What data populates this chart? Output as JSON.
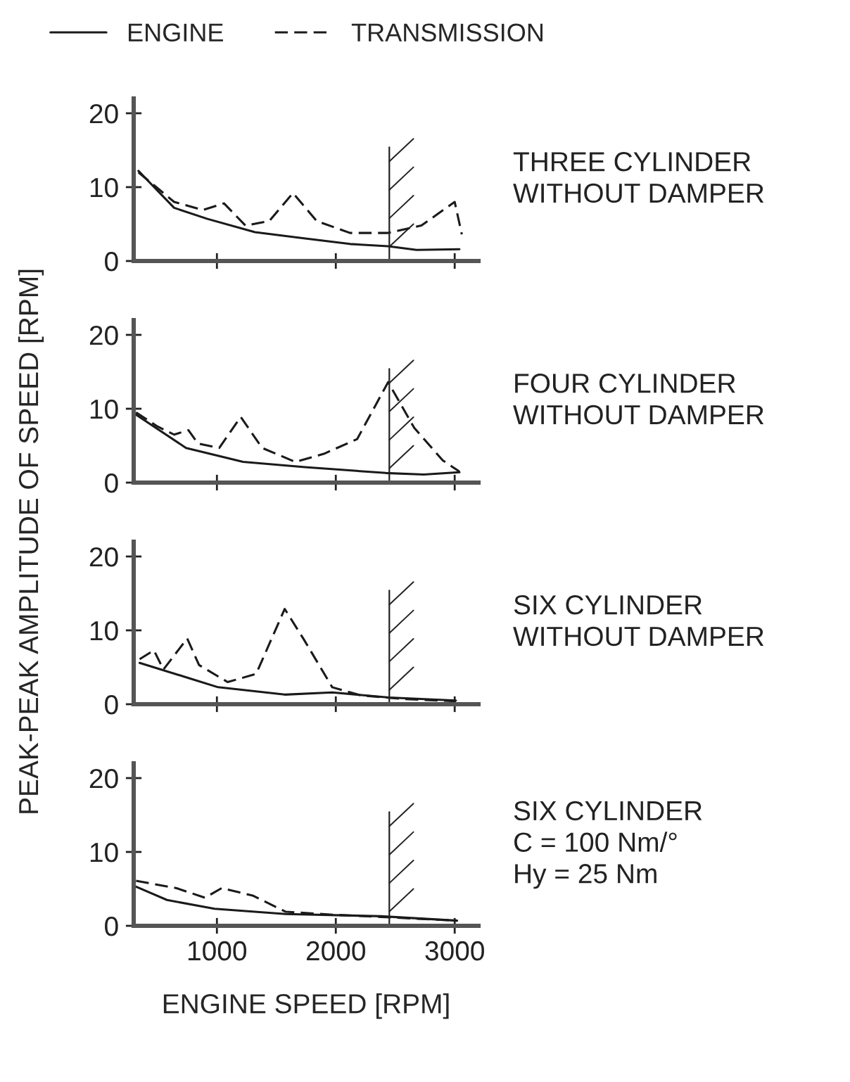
{
  "chart_data": [
    {
      "type": "line",
      "ylabel": "PEAK-PEAK AMPLITUDE OF SPEED [RPM]",
      "annotations": [
        "THREE CYLINDER\nWITHOUT DAMPER"
      ],
      "legend": "top",
      "tick_labels": "y",
      "grid": false,
      "xlim": [
        300,
        3200
      ],
      "xticks": [
        {
          "value": 1000,
          "label": null
        },
        {
          "value": 2000,
          "label": null
        },
        {
          "value": 3000,
          "label": null
        }
      ],
      "ylim": [
        0,
        22
      ],
      "yticks": [
        0,
        10,
        20
      ],
      "ref_lines": [
        {
          "axis": "x",
          "value": 2450,
          "label": null
        }
      ],
      "series": [
        {
          "name": "ENGINE",
          "color": "#1a1a1a",
          "line_style": "solid",
          "x": [
            340,
            640,
            920,
            1320,
            1720,
            2120,
            2440,
            2680,
            3040
          ],
          "values": [
            12.2,
            7.2,
            5.7,
            3.9,
            3.1,
            2.3,
            2.0,
            1.5,
            1.6
          ]
        },
        {
          "name": "TRANSMISSION",
          "color": "#1a1a1a",
          "line_style": "dashed",
          "x": [
            340,
            640,
            880,
            1060,
            1240,
            1440,
            1640,
            1840,
            2120,
            2440,
            2720,
            3000,
            3060
          ],
          "values": [
            12,
            8,
            6.9,
            7.8,
            4.8,
            5.4,
            9.2,
            5.4,
            3.8,
            3.8,
            4.8,
            8,
            3.6
          ]
        }
      ]
    },
    {
      "type": "line",
      "annotations": [
        "FOUR CYLINDER\nWITHOUT DAMPER"
      ],
      "tick_labels": "y",
      "grid": false,
      "xlim": [
        300,
        3200
      ],
      "xticks": [
        {
          "value": 1000,
          "label": null
        },
        {
          "value": 2000,
          "label": null
        },
        {
          "value": 3000,
          "label": null
        }
      ],
      "ylim": [
        0,
        22
      ],
      "yticks": [
        0,
        10,
        20
      ],
      "ref_lines": [
        {
          "axis": "x",
          "value": 2450,
          "label": null
        }
      ],
      "series": [
        {
          "color": "#1a1a1a",
          "line_style": "solid",
          "x": [
            320,
            740,
            1220,
            1740,
            2420,
            2740,
            3040
          ],
          "values": [
            9.2,
            4.7,
            2.8,
            2.1,
            1.3,
            1.1,
            1.4
          ]
        },
        {
          "color": "#1a1a1a",
          "line_style": "dashed",
          "x": [
            320,
            500,
            640,
            760,
            840,
            1020,
            1200,
            1380,
            1660,
            1900,
            2180,
            2440,
            2660,
            2900,
            3040
          ],
          "values": [
            9.5,
            7.6,
            6.5,
            7.1,
            5.3,
            4.7,
            8.9,
            4.7,
            2.8,
            3.9,
            5.9,
            13.6,
            7.4,
            3.0,
            1.5
          ]
        }
      ]
    },
    {
      "type": "line",
      "annotations": [
        "SIX CYLINDER\nWITHOUT DAMPER"
      ],
      "tick_labels": "y",
      "grid": false,
      "xlim": [
        300,
        3200
      ],
      "xticks": [
        {
          "value": 1000,
          "label": null
        },
        {
          "value": 2000,
          "label": null
        },
        {
          "value": 3000,
          "label": null
        }
      ],
      "ylim": [
        0,
        22
      ],
      "yticks": [
        0,
        10,
        20
      ],
      "ref_lines": [
        {
          "axis": "x",
          "value": 2450,
          "label": null
        }
      ],
      "series": [
        {
          "color": "#1a1a1a",
          "line_style": "solid",
          "x": [
            350,
            770,
            1010,
            1570,
            1970,
            2450,
            3010
          ],
          "values": [
            5.6,
            3.5,
            2.3,
            1.3,
            1.6,
            0.9,
            0.5
          ]
        },
        {
          "color": "#1a1a1a",
          "line_style": "dashed",
          "x": [
            350,
            470,
            550,
            750,
            850,
            1090,
            1330,
            1570,
            1730,
            1970,
            2210,
            2570,
            3010
          ],
          "values": [
            6.1,
            7.3,
            4.7,
            8.9,
            5.3,
            3.0,
            4.1,
            12.9,
            8.8,
            2.3,
            1.2,
            0.7,
            0.4
          ]
        }
      ]
    },
    {
      "type": "line",
      "xlabel": "ENGINE SPEED [RPM]",
      "annotations": [
        "SIX CYLINDER\nC = 100 Nm/°\nHy = 25 Nm"
      ],
      "grid": false,
      "xlim": [
        300,
        3200
      ],
      "xticks": [
        1000,
        2000,
        3000
      ],
      "ylim": [
        0,
        22
      ],
      "yticks": [
        0,
        10,
        20
      ],
      "ref_lines": [
        {
          "axis": "x",
          "value": 2450,
          "label": null
        }
      ],
      "series": [
        {
          "color": "#1a1a1a",
          "line_style": "solid",
          "x": [
            320,
            580,
            980,
            1580,
            2380,
            3020
          ],
          "values": [
            5.3,
            3.5,
            2.3,
            1.6,
            1.3,
            0.7
          ]
        },
        {
          "color": "#1a1a1a",
          "line_style": "dashed",
          "x": [
            320,
            660,
            900,
            1040,
            1300,
            1580,
            1980,
            2380,
            3020
          ],
          "values": [
            6.1,
            5.1,
            3.8,
            5.1,
            4.1,
            1.9,
            1.5,
            1.2,
            0.7
          ]
        }
      ]
    }
  ]
}
